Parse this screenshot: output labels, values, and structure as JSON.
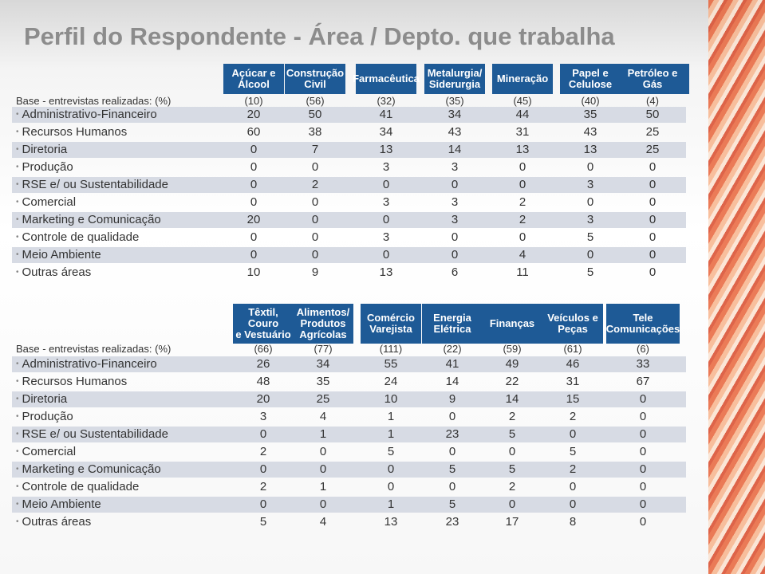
{
  "title": "Perfil do Respondente - Área / Depto. que trabalha",
  "tables": [
    {
      "headers": [
        [
          "Açúcar e",
          "Álcool"
        ],
        [
          "Construção",
          "Civil"
        ],
        [
          "Farmacêutica"
        ],
        [
          "Metalurgia/",
          "Siderurgia"
        ],
        [
          "Mineração"
        ],
        [
          "Papel e",
          "Celulose"
        ],
        [
          "Petróleo e",
          "Gás"
        ]
      ],
      "base_label": "Base - entrevistas realizadas: (%)",
      "base": [
        "(10)",
        "(56)",
        "(32)",
        "(35)",
        "(45)",
        "(40)",
        "(4)"
      ],
      "rows": [
        {
          "label": "Administrativo-Financeiro",
          "values": [
            20,
            50,
            41,
            34,
            44,
            35,
            50
          ]
        },
        {
          "label": "Recursos Humanos",
          "values": [
            60,
            38,
            34,
            43,
            31,
            43,
            25
          ]
        },
        {
          "label": "Diretoria",
          "values": [
            0,
            7,
            13,
            14,
            13,
            13,
            25
          ]
        },
        {
          "label": "Produção",
          "values": [
            0,
            0,
            3,
            3,
            0,
            0,
            0
          ]
        },
        {
          "label": "RSE e/ ou Sustentabilidade",
          "values": [
            0,
            2,
            0,
            0,
            0,
            3,
            0
          ]
        },
        {
          "label": "Comercial",
          "values": [
            0,
            0,
            3,
            3,
            2,
            0,
            0
          ]
        },
        {
          "label": "Marketing e Comunicação",
          "values": [
            20,
            0,
            0,
            3,
            2,
            3,
            0
          ]
        },
        {
          "label": "Controle de qualidade",
          "values": [
            0,
            0,
            3,
            0,
            0,
            5,
            0
          ]
        },
        {
          "label": "Meio Ambiente",
          "values": [
            0,
            0,
            0,
            0,
            4,
            0,
            0
          ]
        },
        {
          "label": "Outras áreas",
          "values": [
            10,
            9,
            13,
            6,
            11,
            5,
            0
          ]
        }
      ]
    },
    {
      "headers": [
        [
          "Têxtil, Couro",
          "e Vestuário"
        ],
        [
          "Alimentos/",
          "Produtos",
          "Agrícolas"
        ],
        [
          "Comércio",
          "Varejista"
        ],
        [
          "Energia",
          "Elétrica"
        ],
        [
          "Finanças"
        ],
        [
          "Veículos e",
          "Peças"
        ],
        [
          "Tele",
          "Comunicações"
        ]
      ],
      "base_label": "Base - entrevistas realizadas: (%)",
      "base": [
        "(66)",
        "(77)",
        "(111)",
        "(22)",
        "(59)",
        "(61)",
        "(6)"
      ],
      "rows": [
        {
          "label": "Administrativo-Financeiro",
          "values": [
            26,
            34,
            55,
            41,
            49,
            46,
            33
          ]
        },
        {
          "label": "Recursos Humanos",
          "values": [
            48,
            35,
            24,
            14,
            22,
            31,
            67
          ]
        },
        {
          "label": "Diretoria",
          "values": [
            20,
            25,
            10,
            9,
            14,
            15,
            0
          ]
        },
        {
          "label": "Produção",
          "values": [
            3,
            4,
            1,
            0,
            2,
            2,
            0
          ]
        },
        {
          "label": "RSE e/ ou Sustentabilidade",
          "values": [
            0,
            1,
            1,
            23,
            5,
            0,
            0
          ]
        },
        {
          "label": "Comercial",
          "values": [
            2,
            0,
            5,
            0,
            0,
            5,
            0
          ]
        },
        {
          "label": "Marketing e Comunicação",
          "values": [
            0,
            0,
            0,
            5,
            5,
            2,
            0
          ]
        },
        {
          "label": "Controle de qualidade",
          "values": [
            2,
            1,
            0,
            0,
            2,
            0,
            0
          ]
        },
        {
          "label": "Meio Ambiente",
          "values": [
            0,
            0,
            1,
            5,
            0,
            0,
            0
          ]
        },
        {
          "label": "Outras áreas",
          "values": [
            5,
            4,
            13,
            23,
            17,
            8,
            0
          ]
        }
      ]
    }
  ]
}
